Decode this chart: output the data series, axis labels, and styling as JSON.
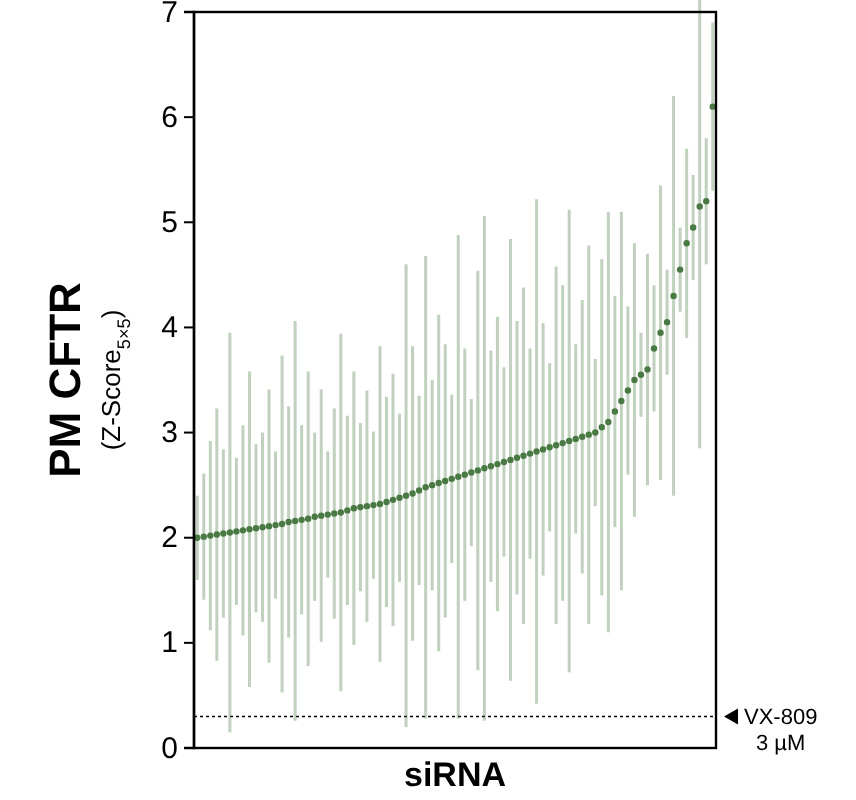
{
  "chart_data": {
    "type": "scatter",
    "xlabel": "siRNA",
    "ylabel": "PM CFTR\n(Z-Score$_{5×5}$)",
    "ylim": [
      0,
      7
    ],
    "yticks": [
      0,
      1,
      2,
      3,
      4,
      5,
      6,
      7
    ],
    "grid": false,
    "marker": "circle",
    "categories": [
      null,
      null,
      null,
      null,
      null,
      null,
      null,
      null,
      null,
      null,
      null,
      null,
      null,
      null,
      null,
      null,
      null,
      null,
      null,
      null,
      null,
      null,
      null,
      null,
      null,
      null,
      null,
      null,
      null,
      null,
      null,
      null,
      null,
      null,
      null,
      null,
      null,
      null,
      null,
      null,
      null,
      null,
      null,
      null,
      null,
      null,
      null,
      null,
      null,
      null,
      null,
      null,
      null,
      null,
      null,
      null,
      null,
      null,
      null,
      null,
      null,
      null,
      null,
      null,
      null,
      null,
      null,
      null,
      null,
      null,
      null,
      null,
      null,
      null,
      null,
      null,
      null,
      null,
      null,
      null
    ],
    "series": [
      {
        "color": "#4a7a44",
        "values": [
          2.0,
          2.01,
          2.02,
          2.03,
          2.04,
          2.05,
          2.06,
          2.07,
          2.08,
          2.09,
          2.1,
          2.11,
          2.12,
          2.13,
          2.15,
          2.16,
          2.17,
          2.18,
          2.2,
          2.21,
          2.22,
          2.23,
          2.24,
          2.26,
          2.28,
          2.29,
          2.3,
          2.31,
          2.32,
          2.34,
          2.36,
          2.38,
          2.4,
          2.42,
          2.45,
          2.48,
          2.5,
          2.52,
          2.54,
          2.56,
          2.58,
          2.6,
          2.62,
          2.64,
          2.66,
          2.68,
          2.7,
          2.72,
          2.74,
          2.76,
          2.78,
          2.8,
          2.82,
          2.84,
          2.86,
          2.88,
          2.9,
          2.92,
          2.94,
          2.96,
          2.98,
          3.0,
          3.05,
          3.1,
          3.2,
          3.3,
          3.4,
          3.5,
          3.55,
          3.6,
          3.8,
          3.95,
          4.05,
          4.3,
          4.55,
          4.8,
          4.95,
          5.15,
          5.2,
          6.1
        ],
        "errors": [
          0.4,
          0.6,
          0.9,
          1.2,
          0.8,
          1.9,
          0.7,
          1.0,
          1.5,
          0.8,
          0.9,
          1.3,
          0.7,
          1.6,
          1.1,
          1.9,
          0.9,
          1.4,
          0.8,
          1.2,
          0.6,
          1.0,
          1.7,
          0.9,
          1.3,
          0.8,
          1.1,
          0.7,
          1.5,
          1.0,
          1.2,
          0.8,
          2.2,
          1.4,
          0.9,
          2.2,
          1.0,
          1.6,
          1.3,
          0.8,
          2.3,
          1.2,
          0.7,
          1.9,
          2.4,
          1.1,
          1.4,
          0.9,
          2.1,
          1.3,
          1.6,
          1.0,
          2.4,
          1.2,
          0.8,
          1.7,
          1.5,
          2.2,
          0.9,
          1.3,
          1.8,
          0.7,
          1.6,
          2.0,
          1.1,
          1.8,
          0.8,
          1.3,
          0.4,
          1.1,
          0.6,
          1.4,
          0.5,
          1.9,
          0.4,
          0.9,
          0.5,
          2.3,
          0.6,
          0.8
        ]
      }
    ],
    "ref_lines": [
      {
        "axis": "y",
        "value": 0.3,
        "label": "VX-809 3 µM",
        "color": "#000000",
        "line_style": "dotted"
      }
    ]
  }
}
